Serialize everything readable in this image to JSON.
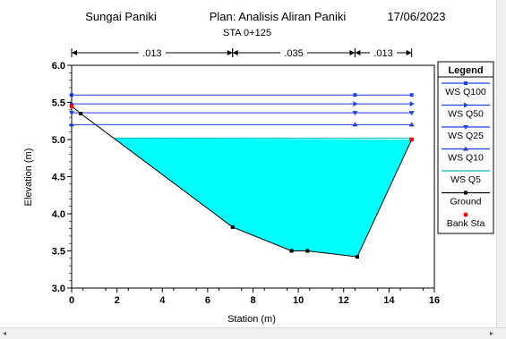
{
  "header": {
    "river": "Sungai Paniki",
    "plan": "Plan: Analisis Aliran Paniki",
    "date": "17/06/2023",
    "station": "STA 0+125"
  },
  "chart_data": {
    "type": "line",
    "xlabel": "Station (m)",
    "ylabel": "Elevation (m)",
    "xlim": [
      0,
      16
    ],
    "ylim": [
      3.0,
      6.0
    ],
    "xticks": [
      "0",
      "2",
      "4",
      "6",
      "8",
      "10",
      "12",
      "14",
      "16"
    ],
    "yticks": [
      "3.0",
      "3.5",
      "4.0",
      "4.5",
      "5.0",
      "5.5",
      "6.0"
    ],
    "manning": [
      {
        "label": ".013",
        "x_start": 0,
        "x_end": 7.1
      },
      {
        "label": ".035",
        "x_start": 7.1,
        "x_end": 12.5
      },
      {
        "label": ".013",
        "x_start": 12.5,
        "x_end": 15.0
      }
    ],
    "ground": {
      "x": [
        0,
        0.4,
        7.1,
        9.7,
        10.4,
        12.6,
        15.0
      ],
      "y": [
        5.45,
        5.35,
        3.82,
        3.5,
        3.5,
        3.42,
        5.0
      ]
    },
    "bank_stations": [
      {
        "x": 0,
        "y": 5.45
      },
      {
        "x": 15.0,
        "y": 5.0
      }
    ],
    "series": [
      {
        "name": "WS Q100",
        "y": 5.6,
        "color": "#1f3fe0",
        "marker": "square"
      },
      {
        "name": "WS Q50",
        "y": 5.48,
        "color": "#1f3fe0",
        "marker": "triangle-right"
      },
      {
        "name": "WS Q25",
        "y": 5.36,
        "color": "#1f3fe0",
        "marker": "triangle-down"
      },
      {
        "name": "WS Q10",
        "y": 5.2,
        "color": "#1f3fe0",
        "marker": "triangle-up"
      },
      {
        "name": "WS Q5",
        "y": 5.02,
        "color": "#00e0e8",
        "marker": "none"
      },
      {
        "name": "Ground",
        "color": "#000000",
        "marker": "square"
      },
      {
        "name": "Bank Sta",
        "color": "#ff0000",
        "marker": "circle"
      }
    ],
    "legend_title": "Legend",
    "legend_position": "right",
    "water_fill": "#00ffff"
  }
}
